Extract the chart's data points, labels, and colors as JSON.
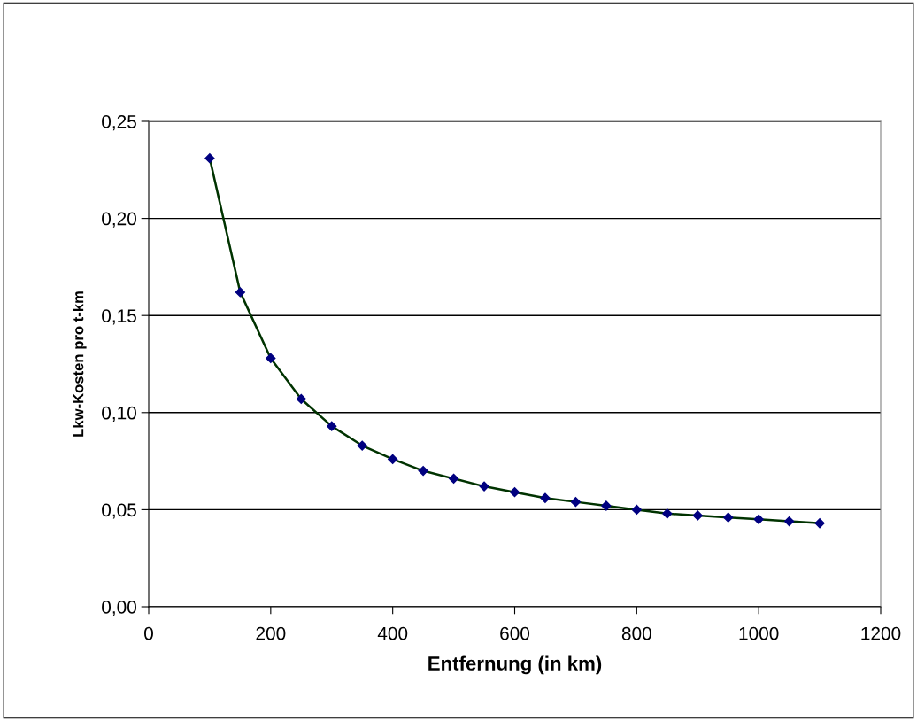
{
  "chart_data": {
    "type": "line",
    "xlabel": "Entfernung (in km)",
    "ylabel": "Lkw-Kosten pro t-km",
    "x": [
      100,
      150,
      200,
      250,
      300,
      350,
      400,
      450,
      500,
      550,
      600,
      650,
      700,
      750,
      800,
      850,
      900,
      950,
      1000,
      1050,
      1100
    ],
    "series": [
      {
        "color": "#003300",
        "values": [
          0.231,
          0.162,
          0.128,
          0.107,
          0.093,
          0.083,
          0.076,
          0.07,
          0.066,
          0.062,
          0.059,
          0.056,
          0.054,
          0.052,
          0.05,
          0.048,
          0.047,
          0.046,
          0.045,
          0.044,
          0.043
        ]
      }
    ],
    "xlim": [
      0,
      1200
    ],
    "xticks": [
      0,
      200,
      400,
      600,
      800,
      1000,
      1200
    ],
    "ylim": [
      0,
      0.25
    ],
    "yticks": [
      {
        "value": 0,
        "label": "0,00"
      },
      {
        "value": 0.05,
        "label": "0,05"
      },
      {
        "value": 0.1,
        "label": "0,10"
      },
      {
        "value": 0.15,
        "label": "0,15"
      },
      {
        "value": 0.2,
        "label": "0,20"
      },
      {
        "value": 0.25,
        "label": "0,25"
      }
    ],
    "grid": "y",
    "marker": "diamond",
    "line_style": "solid"
  }
}
